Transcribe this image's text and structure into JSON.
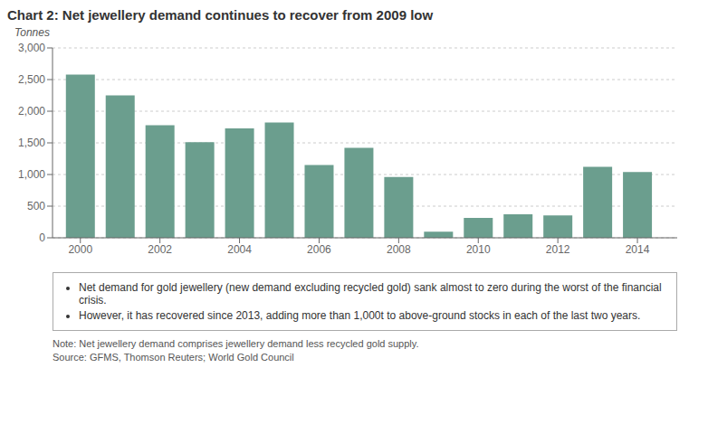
{
  "chart_data": {
    "type": "bar",
    "title": "Chart 2: Net jewellery demand continues to recover from 2009 low",
    "ylabel": "Tonnes",
    "x": [
      2000,
      2001,
      2002,
      2003,
      2004,
      2005,
      2006,
      2007,
      2008,
      2009,
      2010,
      2011,
      2012,
      2013,
      2014
    ],
    "values": [
      2580,
      2250,
      1780,
      1510,
      1730,
      1820,
      1150,
      1420,
      960,
      95,
      315,
      370,
      355,
      1120,
      1040
    ],
    "color": "#6b9e8e",
    "xlim": [
      1999.3,
      2015.0
    ],
    "xticks": [
      2000,
      2002,
      2004,
      2006,
      2008,
      2010,
      2012,
      2014
    ],
    "ylim": [
      0,
      3000
    ],
    "yticks": [
      0,
      500,
      {
        "value": 1000,
        "label": "1,000"
      },
      {
        "value": 1500,
        "label": "1,500"
      },
      {
        "value": 2000,
        "label": "2,000"
      },
      {
        "value": 2500,
        "label": "2,500"
      },
      {
        "value": 3000,
        "label": "3,000"
      }
    ],
    "grid": true,
    "annotations": [
      "Net demand for gold jewellery (new demand excluding recycled gold) sank almost to zero during the worst of the financial crisis.",
      "However, it has recovered since 2013, adding more than 1,000t to above-ground stocks in each of the last two years.",
      "Note: Net jewellery demand comprises jewellery demand less recycled gold supply.",
      "Source: GFMS, Thomson Reuters; World Gold Council"
    ]
  }
}
